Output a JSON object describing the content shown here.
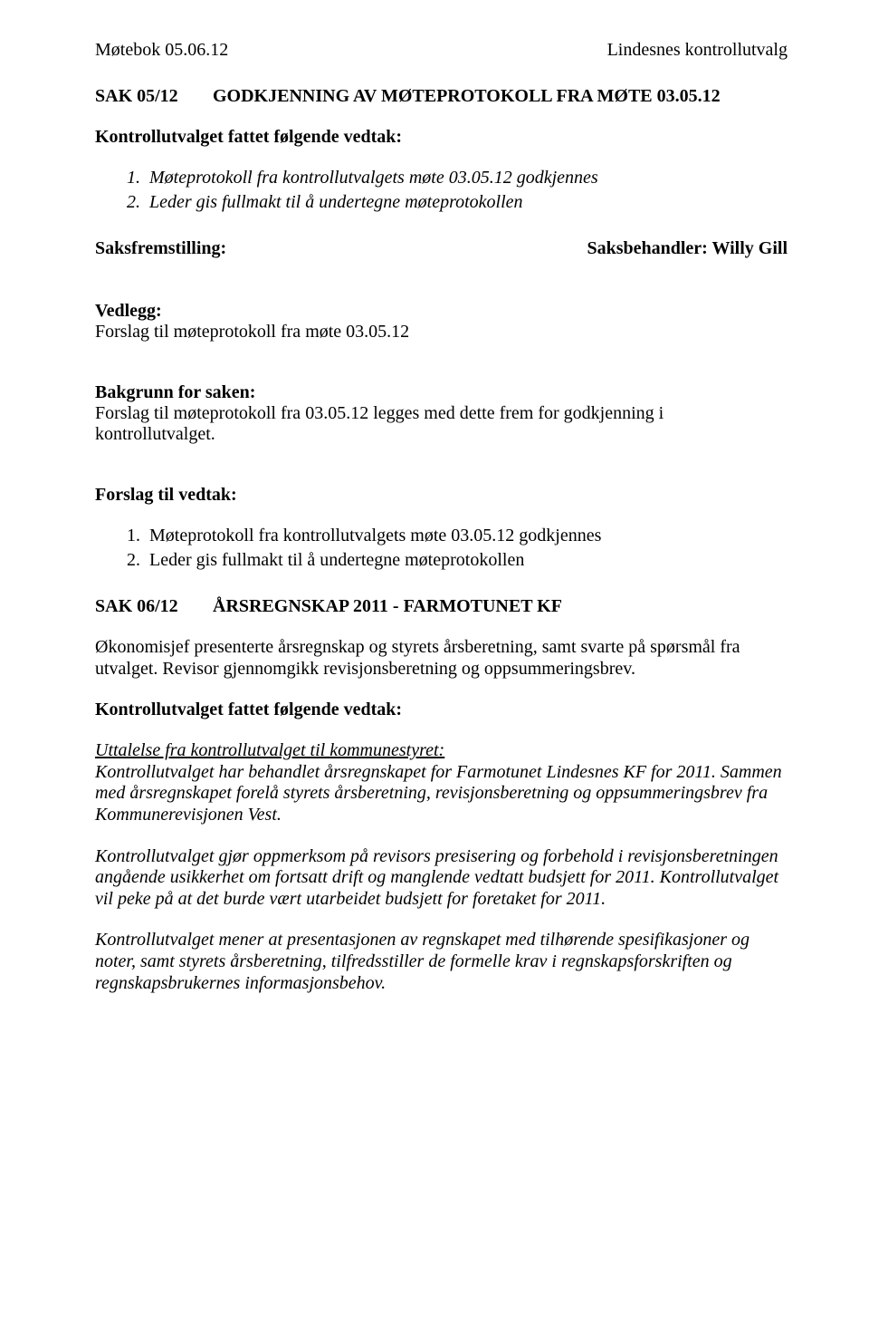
{
  "header": {
    "left": "Møtebok 05.06.12",
    "right": "Lindesnes kontrollutvalg"
  },
  "sak05": {
    "number": "SAK 05/12",
    "title": "GODKJENNING AV MØTEPROTOKOLL FRA MØTE 03.05.12",
    "vedtak_label": "Kontrollutvalget fattet følgende vedtak:",
    "list": [
      "Møteprotokoll fra kontrollutvalgets møte 03.05.12 godkjennes",
      "Leder gis fullmakt til å undertegne møteprotokollen"
    ],
    "saksfremstilling": "Saksfremstilling:",
    "saksbehandler": "Saksbehandler: Willy Gill",
    "vedlegg_label": "Vedlegg:",
    "vedlegg_text": "Forslag til møteprotokoll fra møte 03.05.12",
    "bakgrunn_label": "Bakgrunn for saken:",
    "bakgrunn_text": "Forslag til møteprotokoll fra 03.05.12 legges med dette frem for godkjenning i kontrollutvalget.",
    "forslag_label": "Forslag til vedtak:",
    "forslag_list": [
      "Møteprotokoll fra kontrollutvalgets møte 03.05.12 godkjennes",
      "Leder gis fullmakt til å undertegne møteprotokollen"
    ]
  },
  "sak06": {
    "number": "SAK 06/12",
    "title": "ÅRSREGNSKAP 2011 - FARMOTUNET KF",
    "intro": "Økonomisjef presenterte årsregnskap og styrets årsberetning, samt svarte på spørsmål fra utvalget. Revisor gjennomgikk revisjonsberetning og oppsummeringsbrev.",
    "vedtak_label": "Kontrollutvalget fattet følgende vedtak:",
    "uttalelse_underline": "Uttalelse fra kontrollutvalget til kommunestyret:",
    "p1": "Kontrollutvalget har behandlet årsregnskapet for Farmotunet Lindesnes KF for 2011. Sammen med årsregnskapet forelå styrets årsberetning, revisjonsberetning og oppsummeringsbrev fra Kommunerevisjonen Vest.",
    "p2": "Kontrollutvalget gjør oppmerksom på revisors presisering og forbehold  i revisjonsberetningen angående usikkerhet om fortsatt drift og manglende vedtatt budsjett for 2011. Kontrollutvalget vil peke på at det burde vært utarbeidet budsjett for foretaket for 2011.",
    "p3": "Kontrollutvalget mener at presentasjonen av regnskapet med tilhørende spesifikasjoner og noter, samt styrets årsberetning, tilfredsstiller de formelle krav i regnskapsforskriften og regnskapsbrukernes informasjonsbehov."
  }
}
